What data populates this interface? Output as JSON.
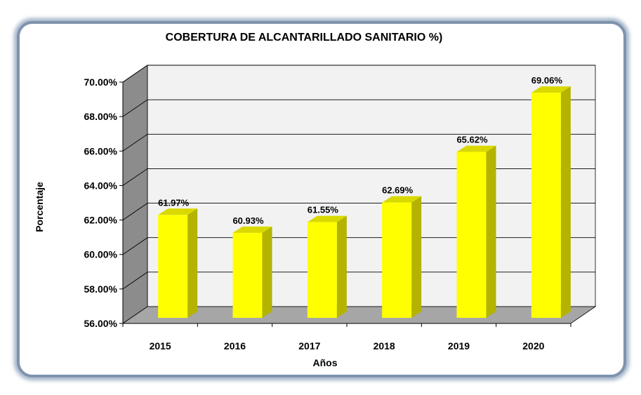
{
  "chart_data": {
    "type": "bar",
    "title": "COBERTURA DE ALCANTARILLADO SANITARIO %)",
    "xlabel": "Años",
    "ylabel": "Porcentaje",
    "categories": [
      "2015",
      "2016",
      "2017",
      "2018",
      "2019",
      "2020"
    ],
    "values": [
      61.97,
      60.93,
      61.55,
      62.69,
      65.62,
      69.06
    ],
    "value_labels": [
      "61.97%",
      "60.93%",
      "61.55%",
      "62.69%",
      "65.62%",
      "69.06%"
    ],
    "ylim": [
      56,
      70
    ],
    "yticks": [
      56,
      58,
      60,
      62,
      64,
      66,
      68,
      70
    ],
    "ytick_labels": [
      "56.00%",
      "58.00%",
      "60.00%",
      "62.00%",
      "64.00%",
      "66.00%",
      "68.00%",
      "70.00%"
    ],
    "grid": true,
    "style3d": true,
    "colors": {
      "bar_front": "#FFFF00",
      "bar_side": "#B3B300",
      "bar_top": "#D9D900",
      "frame_border": "#7F93AE",
      "wall": "#F2F2F2",
      "floor": "#A6A6A6",
      "side_wall": "#8C8C8C"
    }
  }
}
